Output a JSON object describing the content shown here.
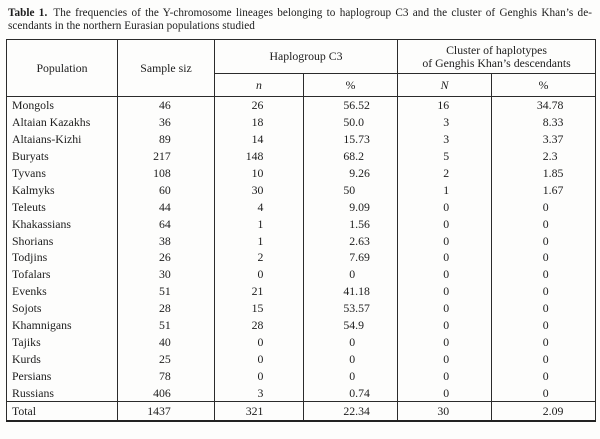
{
  "title": {
    "label": "Table 1.",
    "line1": "The frequencies of the Y-chromosome lineages belonging to haplogroup C3 and the cluster of Genghis Khan’s de-",
    "line2": "scendants in the northern Eurasian populations studied"
  },
  "table": {
    "header": {
      "population": "Population",
      "sample_size": "Sample siz",
      "haplogroup_c3": "Haplogroup C3",
      "cluster_line1": "Cluster of haplotypes",
      "cluster_line2": "of Genghis Khan’s descendants",
      "c3_n": "n",
      "c3_pct": "%",
      "cluster_n": "N",
      "cluster_pct": "%"
    },
    "rows": [
      [
        "Mongols",
        "46",
        "26",
        "56.52",
        "16",
        "34.78"
      ],
      [
        "Altaian Kazakhs",
        "36",
        "18",
        "50.0",
        "3",
        "8.33"
      ],
      [
        "Altaians-Kizhi",
        "89",
        "14",
        "15.73",
        "3",
        "3.37"
      ],
      [
        "Buryats",
        "217",
        "148",
        "68.2",
        "5",
        "2.3"
      ],
      [
        "Tyvans",
        "108",
        "10",
        "9.26",
        "2",
        "1.85"
      ],
      [
        "Kalmyks",
        "60",
        "30",
        "50",
        "1",
        "1.67"
      ],
      [
        "Teleuts",
        "44",
        "4",
        "9.09",
        "0",
        "0"
      ],
      [
        "Khakassians",
        "64",
        "1",
        "1.56",
        "0",
        "0"
      ],
      [
        "Shorians",
        "38",
        "1",
        "2.63",
        "0",
        "0"
      ],
      [
        "Todjins",
        "26",
        "2",
        "7.69",
        "0",
        "0"
      ],
      [
        "Tofalars",
        "30",
        "0",
        "0",
        "0",
        "0"
      ],
      [
        "Evenks",
        "51",
        "21",
        "41.18",
        "0",
        "0"
      ],
      [
        "Sojots",
        "28",
        "15",
        "53.57",
        "0",
        "0"
      ],
      [
        "Khamnigans",
        "51",
        "28",
        "54.9",
        "0",
        "0"
      ],
      [
        "Tajiks",
        "40",
        "0",
        "0",
        "0",
        "0"
      ],
      [
        "Kurds",
        "25",
        "0",
        "0",
        "0",
        "0"
      ],
      [
        "Persians",
        "78",
        "0",
        "0",
        "0",
        "0"
      ],
      [
        "Russians",
        "406",
        "3",
        "0.74",
        "0",
        "0"
      ]
    ],
    "total": [
      "Total",
      "1437",
      "321",
      "22.34",
      "30",
      "2.09"
    ]
  }
}
